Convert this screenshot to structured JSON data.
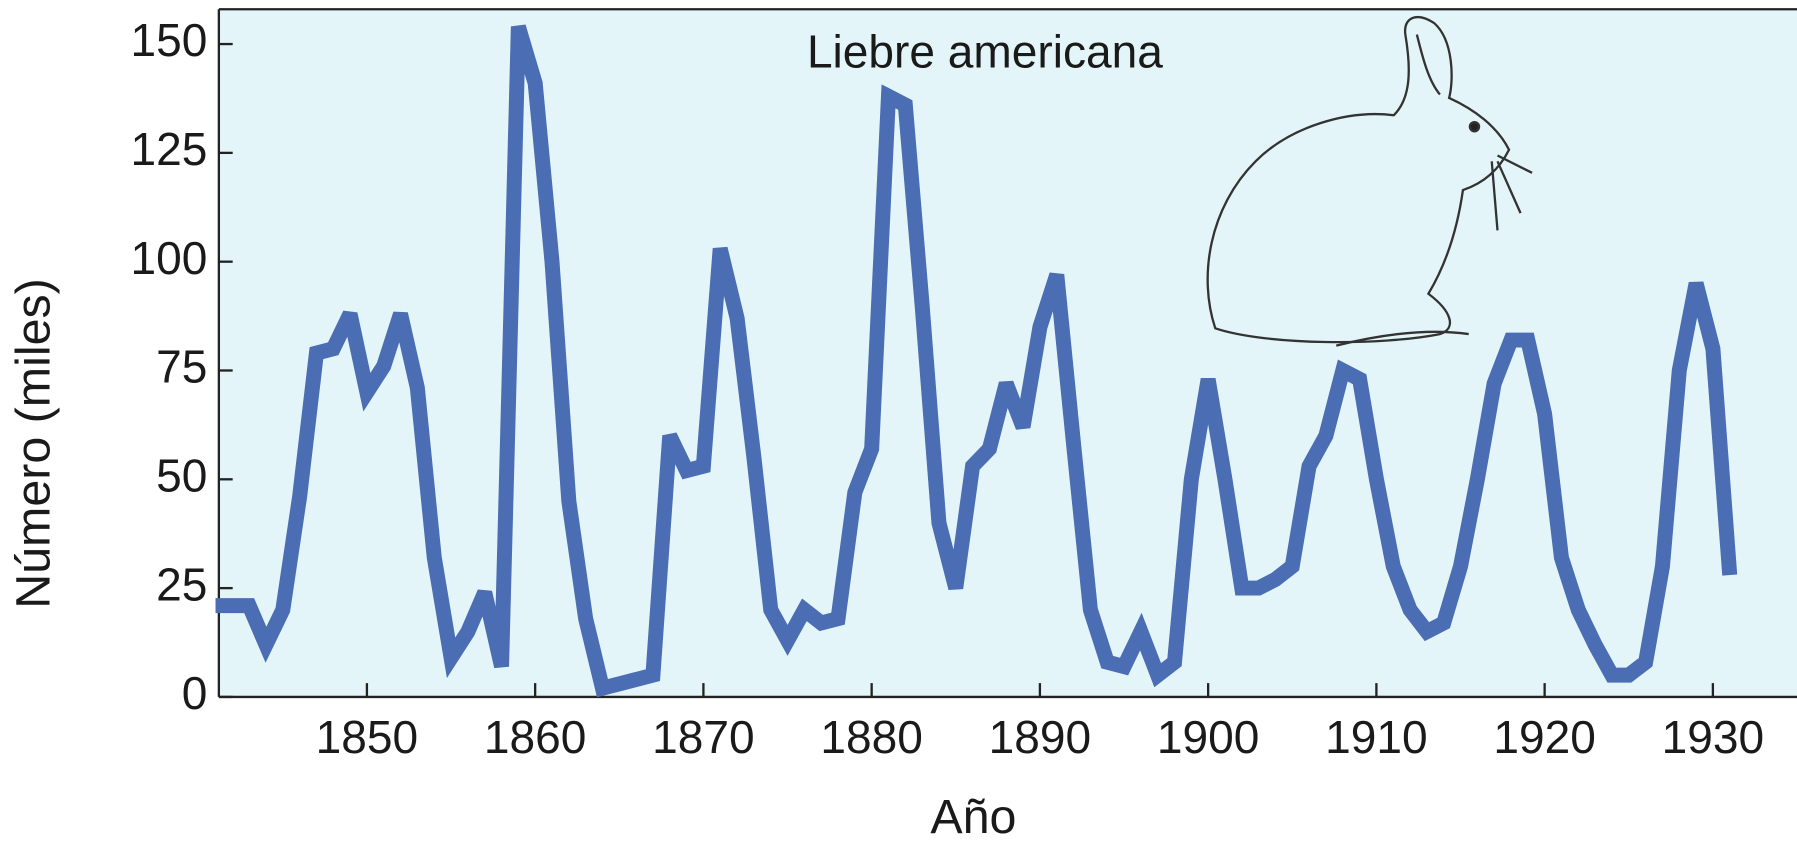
{
  "chart_data": {
    "type": "line",
    "annotation": "Liebre americana",
    "x_label": "Año",
    "y_label": "Número (miles)",
    "x": [
      1841,
      1842,
      1843,
      1844,
      1845,
      1846,
      1847,
      1848,
      1849,
      1850,
      1851,
      1852,
      1853,
      1854,
      1855,
      1856,
      1857,
      1858,
      1859,
      1860,
      1861,
      1862,
      1863,
      1864,
      1865,
      1866,
      1867,
      1868,
      1869,
      1870,
      1871,
      1872,
      1873,
      1874,
      1875,
      1876,
      1877,
      1878,
      1879,
      1880,
      1881,
      1882,
      1883,
      1884,
      1885,
      1886,
      1887,
      1888,
      1889,
      1890,
      1891,
      1892,
      1893,
      1894,
      1895,
      1896,
      1897,
      1898,
      1899,
      1900,
      1901,
      1902,
      1903,
      1904,
      1905,
      1906,
      1907,
      1908,
      1909,
      1910,
      1911,
      1912,
      1913,
      1914,
      1915,
      1916,
      1917,
      1918,
      1919,
      1920,
      1921,
      1922,
      1923,
      1924,
      1925,
      1926,
      1927,
      1928,
      1929,
      1930,
      1931
    ],
    "series": [
      {
        "name": "Liebre americana",
        "color": "#4a6db3",
        "values": [
          21,
          21,
          21,
          12,
          20,
          46,
          79,
          80,
          88,
          70,
          76,
          88,
          71,
          32,
          9,
          15,
          24,
          7,
          154,
          141,
          100,
          45,
          18,
          2,
          3,
          4,
          5,
          60,
          52,
          53,
          103,
          87,
          55,
          20,
          13,
          20,
          17,
          18,
          47,
          57,
          138,
          136,
          90,
          40,
          25,
          53,
          57,
          72,
          62,
          85,
          97,
          58,
          20,
          8,
          7,
          15,
          5,
          8,
          50,
          73,
          50,
          25,
          25,
          27,
          30,
          53,
          60,
          75,
          73,
          50,
          30,
          20,
          15,
          17,
          30,
          50,
          72,
          82,
          82,
          65,
          32,
          20,
          12,
          5,
          5,
          8,
          30,
          75,
          95,
          80,
          28
        ]
      }
    ],
    "xlim": [
      1841.2,
      1935
    ],
    "ylim": [
      0,
      158
    ],
    "xticks": [
      1850,
      1860,
      1870,
      1880,
      1890,
      1900,
      1910,
      1920,
      1930
    ],
    "yticks": [
      0,
      25,
      50,
      75,
      100,
      125,
      150
    ],
    "background": "#e3f5f8"
  }
}
